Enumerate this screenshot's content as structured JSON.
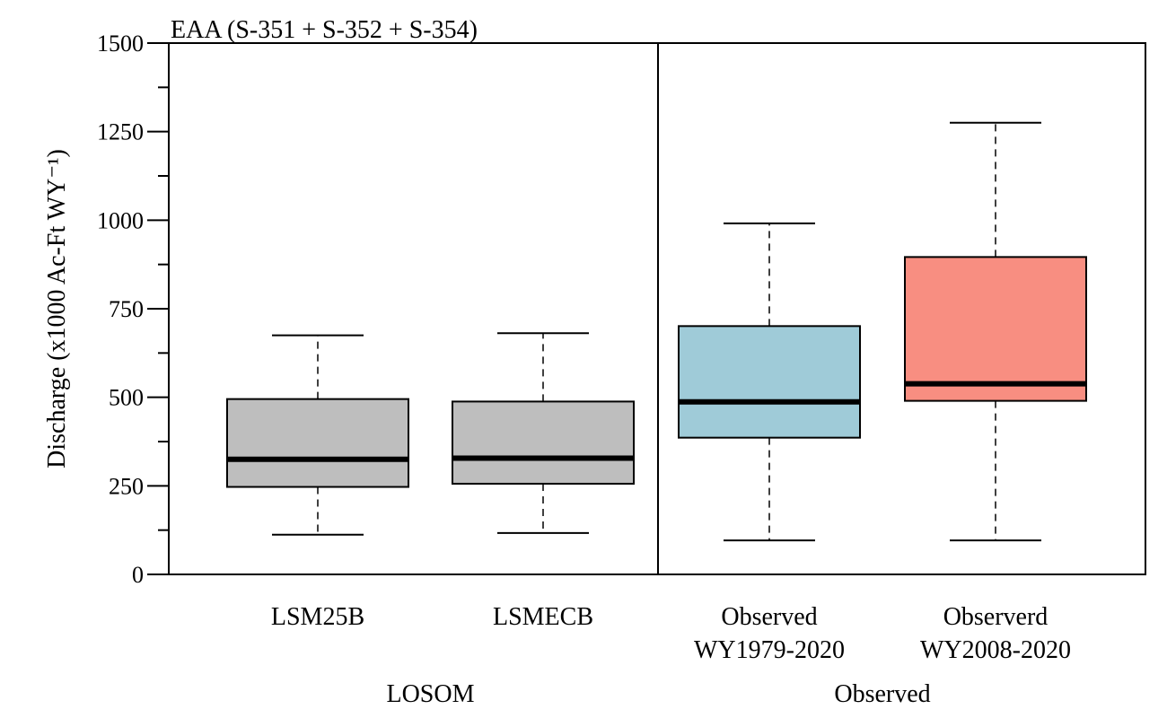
{
  "chart_data": {
    "type": "boxplot",
    "title": "EAA (S-351 + S-352 + S-354)",
    "ylabel": "Discharge (x1000 Ac-Ft WY⁻¹)",
    "ylim": [
      0,
      1500
    ],
    "yticks": [
      0,
      250,
      500,
      750,
      1000,
      1250,
      1500
    ],
    "yminor_step": 125,
    "grid": false,
    "groups": [
      {
        "name": "LOSOM",
        "members": [
          0,
          1
        ]
      },
      {
        "name": "Observed",
        "members": [
          2,
          3
        ]
      }
    ],
    "boxes": [
      {
        "label": [
          "LSM25B"
        ],
        "whisker_low": 112,
        "q1": 247,
        "median": 325,
        "q3": 495,
        "whisker_high": 675,
        "color": "#bebebe"
      },
      {
        "label": [
          "LSMECB"
        ],
        "whisker_low": 117,
        "q1": 256,
        "median": 328,
        "q3": 488,
        "whisker_high": 681,
        "color": "#bebebe"
      },
      {
        "label": [
          "Observed",
          "WY1979-2020"
        ],
        "whisker_low": 96,
        "q1": 386,
        "median": 487,
        "q3": 701,
        "whisker_high": 991,
        "color": "#9fcbd8"
      },
      {
        "label": [
          "Observerd",
          "WY2008-2020"
        ],
        "whisker_low": 96,
        "q1": 490,
        "median": 538,
        "q3": 896,
        "whisker_high": 1275,
        "color": "#f88e81"
      }
    ]
  }
}
